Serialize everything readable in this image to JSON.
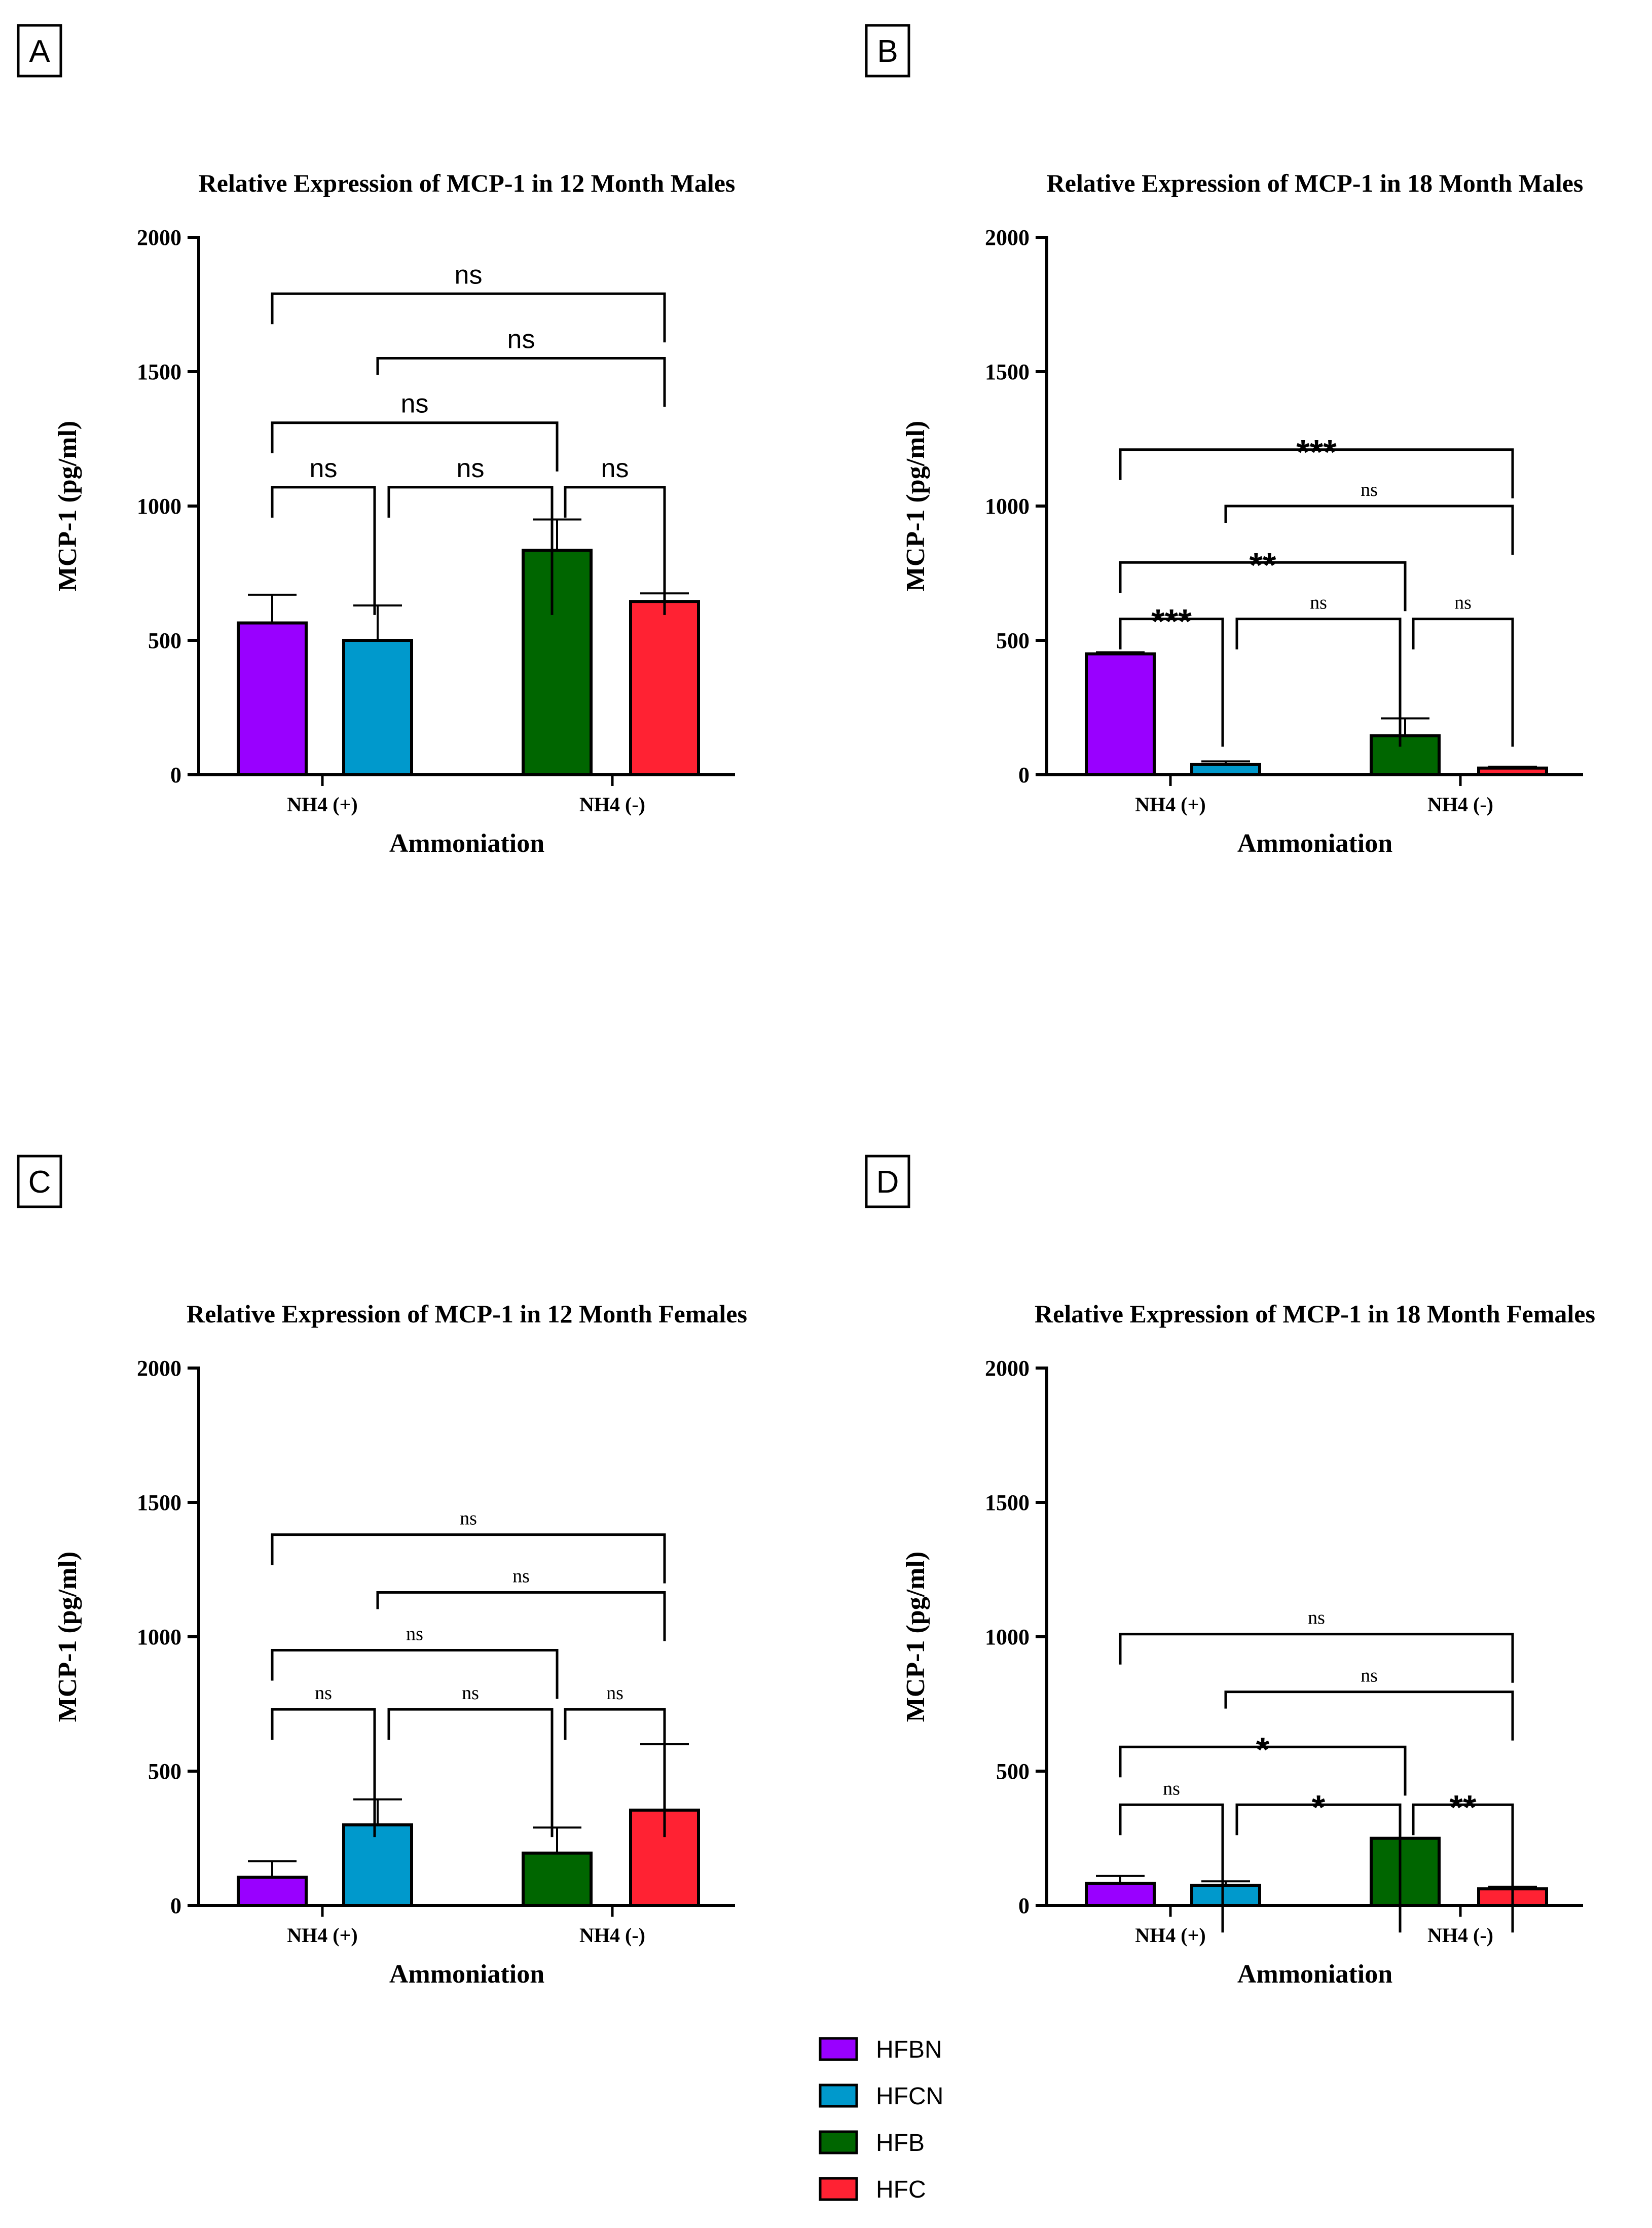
{
  "panels": [
    "A",
    "B",
    "C",
    "D"
  ],
  "legend": [
    {
      "name": "HFBN",
      "color": "#9900FF"
    },
    {
      "name": "HFCN",
      "color": "#0099CC"
    },
    {
      "name": "HFB",
      "color": "#006600"
    },
    {
      "name": "HFC",
      "color": "#FF2233"
    }
  ],
  "chart_data": [
    {
      "panel": "A",
      "type": "bar",
      "title": "Relative Expression of MCP-1 in 12 Month Males",
      "xlabel": "Ammoniation",
      "ylabel": "MCP-1 (pg/ml)",
      "ylim": [
        0,
        2000
      ],
      "yticks": [
        0,
        500,
        1000,
        1500,
        2000
      ],
      "categories": [
        "NH4 (+)",
        "NH4 (-)"
      ],
      "bars": [
        {
          "series": "HFBN",
          "category": "NH4 (+)",
          "value": 565,
          "error": 105
        },
        {
          "series": "HFCN",
          "category": "NH4 (+)",
          "value": 500,
          "error": 130
        },
        {
          "series": "HFB",
          "category": "NH4 (-)",
          "value": 835,
          "error": 115
        },
        {
          "series": "HFC",
          "category": "NH4 (-)",
          "value": 645,
          "error": 30
        }
      ],
      "comparisons": [
        {
          "from": 0,
          "to": 3,
          "label": "ns",
          "y": 1790
        },
        {
          "from": 1,
          "to": 3,
          "label": "ns",
          "y": 1550
        },
        {
          "from": 0,
          "to": 2,
          "label": "ns",
          "y": 1310
        },
        {
          "from": 0,
          "to": 1,
          "label": "ns",
          "y": 1070
        },
        {
          "from": 1,
          "to": 2,
          "label": "ns",
          "y": 1070
        },
        {
          "from": 2,
          "to": 3,
          "label": "ns",
          "y": 1070
        }
      ]
    },
    {
      "panel": "B",
      "type": "bar",
      "title": "Relative Expression of MCP-1 in 18 Month Males",
      "xlabel": "Ammoniation",
      "ylabel": "MCP-1 (pg/ml)",
      "ylim": [
        0,
        2000
      ],
      "yticks": [
        0,
        500,
        1000,
        1500,
        2000
      ],
      "categories": [
        "NH4 (+)",
        "NH4 (-)"
      ],
      "bars": [
        {
          "series": "HFBN",
          "category": "NH4 (+)",
          "value": 450,
          "error": 6
        },
        {
          "series": "HFCN",
          "category": "NH4 (+)",
          "value": 38,
          "error": 12
        },
        {
          "series": "HFB",
          "category": "NH4 (-)",
          "value": 145,
          "error": 65
        },
        {
          "series": "HFC",
          "category": "NH4 (-)",
          "value": 25,
          "error": 5
        }
      ],
      "comparisons": [
        {
          "from": 0,
          "to": 3,
          "label": "***",
          "y": 1210
        },
        {
          "from": 1,
          "to": 3,
          "label": "ns",
          "y": 1000
        },
        {
          "from": 0,
          "to": 2,
          "label": "**",
          "y": 790
        },
        {
          "from": 0,
          "to": 1,
          "label": "***",
          "y": 580
        },
        {
          "from": 1,
          "to": 2,
          "label": "ns",
          "y": 580
        },
        {
          "from": 2,
          "to": 3,
          "label": "ns",
          "y": 580
        }
      ]
    },
    {
      "panel": "C",
      "type": "bar",
      "title": "Relative Expression of MCP-1 in 12 Month Females",
      "xlabel": "Ammoniation",
      "ylabel": "MCP-1 (pg/ml)",
      "ylim": [
        0,
        2000
      ],
      "yticks": [
        0,
        500,
        1000,
        1500,
        2000
      ],
      "categories": [
        "NH4 (+)",
        "NH4 (-)"
      ],
      "bars": [
        {
          "series": "HFBN",
          "category": "NH4 (+)",
          "value": 105,
          "error": 60
        },
        {
          "series": "HFCN",
          "category": "NH4 (+)",
          "value": 300,
          "error": 95
        },
        {
          "series": "HFB",
          "category": "NH4 (-)",
          "value": 195,
          "error": 95
        },
        {
          "series": "HFC",
          "category": "NH4 (-)",
          "value": 355,
          "error": 245
        }
      ],
      "comparisons": [
        {
          "from": 0,
          "to": 3,
          "label": "ns",
          "y": 1380
        },
        {
          "from": 1,
          "to": 3,
          "label": "ns",
          "y": 1165
        },
        {
          "from": 0,
          "to": 2,
          "label": "ns",
          "y": 950
        },
        {
          "from": 0,
          "to": 1,
          "label": "ns",
          "y": 730
        },
        {
          "from": 1,
          "to": 2,
          "label": "ns",
          "y": 730
        },
        {
          "from": 2,
          "to": 3,
          "label": "ns",
          "y": 730
        }
      ]
    },
    {
      "panel": "D",
      "type": "bar",
      "title": "Relative Expression of MCP-1 in 18 Month Females",
      "xlabel": "Ammoniation",
      "ylabel": "MCP-1 (pg/ml)",
      "ylim": [
        0,
        2000
      ],
      "yticks": [
        0,
        500,
        1000,
        1500,
        2000
      ],
      "categories": [
        "NH4 (+)",
        "NH4 (-)"
      ],
      "bars": [
        {
          "series": "HFBN",
          "category": "NH4 (+)",
          "value": 82,
          "error": 28
        },
        {
          "series": "HFCN",
          "category": "NH4 (+)",
          "value": 75,
          "error": 15
        },
        {
          "series": "HFB",
          "category": "NH4 (-)",
          "value": 250,
          "error": 0
        },
        {
          "series": "HFC",
          "category": "NH4 (-)",
          "value": 62,
          "error": 8
        }
      ],
      "comparisons": [
        {
          "from": 0,
          "to": 3,
          "label": "ns",
          "y": 1010
        },
        {
          "from": 1,
          "to": 3,
          "label": "ns",
          "y": 795
        },
        {
          "from": 0,
          "to": 2,
          "label": "*",
          "y": 590
        },
        {
          "from": 0,
          "to": 1,
          "label": "ns",
          "y": 375
        },
        {
          "from": 1,
          "to": 2,
          "label": "*",
          "y": 375
        },
        {
          "from": 2,
          "to": 3,
          "label": "**",
          "y": 375
        }
      ]
    }
  ]
}
